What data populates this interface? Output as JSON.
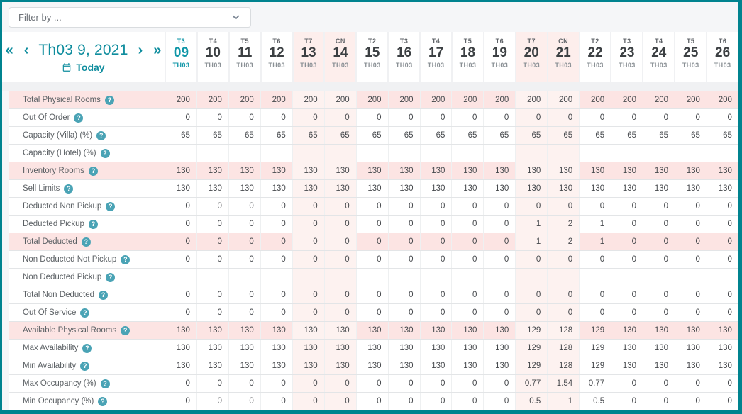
{
  "colors": {
    "accent_teal": "#0f8d9e",
    "frame_border": "#00838f",
    "highlight_row_bg": "#fce4e3",
    "weekend_body_bg": "#fdf2f0",
    "weekend_header_bg": "#fdeeec",
    "help_icon_bg": "#4aa3b5"
  },
  "filter": {
    "placeholder": "Filter by ..."
  },
  "nav": {
    "first_icon": "«",
    "prev_icon": "‹",
    "title": "Th03 9, 2021",
    "next_icon": "›",
    "last_icon": "»",
    "today_label": "Today"
  },
  "calendar": {
    "days": [
      {
        "dow": "T3",
        "num": "09",
        "mon": "TH03",
        "weekend": false,
        "selected": true
      },
      {
        "dow": "T4",
        "num": "10",
        "mon": "TH03",
        "weekend": false,
        "selected": false
      },
      {
        "dow": "T5",
        "num": "11",
        "mon": "TH03",
        "weekend": false,
        "selected": false
      },
      {
        "dow": "T6",
        "num": "12",
        "mon": "TH03",
        "weekend": false,
        "selected": false
      },
      {
        "dow": "T7",
        "num": "13",
        "mon": "TH03",
        "weekend": true,
        "selected": false
      },
      {
        "dow": "CN",
        "num": "14",
        "mon": "TH03",
        "weekend": true,
        "selected": false
      },
      {
        "dow": "T2",
        "num": "15",
        "mon": "TH03",
        "weekend": false,
        "selected": false
      },
      {
        "dow": "T3",
        "num": "16",
        "mon": "TH03",
        "weekend": false,
        "selected": false
      },
      {
        "dow": "T4",
        "num": "17",
        "mon": "TH03",
        "weekend": false,
        "selected": false
      },
      {
        "dow": "T5",
        "num": "18",
        "mon": "TH03",
        "weekend": false,
        "selected": false
      },
      {
        "dow": "T6",
        "num": "19",
        "mon": "TH03",
        "weekend": false,
        "selected": false
      },
      {
        "dow": "T7",
        "num": "20",
        "mon": "TH03",
        "weekend": true,
        "selected": false
      },
      {
        "dow": "CN",
        "num": "21",
        "mon": "TH03",
        "weekend": true,
        "selected": false
      },
      {
        "dow": "T2",
        "num": "22",
        "mon": "TH03",
        "weekend": false,
        "selected": false
      },
      {
        "dow": "T3",
        "num": "23",
        "mon": "TH03",
        "weekend": false,
        "selected": false
      },
      {
        "dow": "T4",
        "num": "24",
        "mon": "TH03",
        "weekend": false,
        "selected": false
      },
      {
        "dow": "T5",
        "num": "25",
        "mon": "TH03",
        "weekend": false,
        "selected": false
      },
      {
        "dow": "T6",
        "num": "26",
        "mon": "TH03",
        "weekend": false,
        "selected": false
      }
    ]
  },
  "table": {
    "rows": [
      {
        "label": "Total Physical Rooms",
        "highlight": true,
        "values": [
          "200",
          "200",
          "200",
          "200",
          "200",
          "200",
          "200",
          "200",
          "200",
          "200",
          "200",
          "200",
          "200",
          "200",
          "200",
          "200",
          "200",
          "200"
        ]
      },
      {
        "label": "Out Of Order",
        "highlight": false,
        "values": [
          "0",
          "0",
          "0",
          "0",
          "0",
          "0",
          "0",
          "0",
          "0",
          "0",
          "0",
          "0",
          "0",
          "0",
          "0",
          "0",
          "0",
          "0"
        ]
      },
      {
        "label": "Capacity (Villa) (%)",
        "highlight": false,
        "values": [
          "65",
          "65",
          "65",
          "65",
          "65",
          "65",
          "65",
          "65",
          "65",
          "65",
          "65",
          "65",
          "65",
          "65",
          "65",
          "65",
          "65",
          "65"
        ]
      },
      {
        "label": "Capacity (Hotel) (%)",
        "highlight": false,
        "values": [
          "",
          "",
          "",
          "",
          "",
          "",
          "",
          "",
          "",
          "",
          "",
          "",
          "",
          "",
          "",
          "",
          "",
          ""
        ]
      },
      {
        "label": "Inventory Rooms",
        "highlight": true,
        "values": [
          "130",
          "130",
          "130",
          "130",
          "130",
          "130",
          "130",
          "130",
          "130",
          "130",
          "130",
          "130",
          "130",
          "130",
          "130",
          "130",
          "130",
          "130"
        ]
      },
      {
        "label": "Sell Limits",
        "highlight": false,
        "values": [
          "130",
          "130",
          "130",
          "130",
          "130",
          "130",
          "130",
          "130",
          "130",
          "130",
          "130",
          "130",
          "130",
          "130",
          "130",
          "130",
          "130",
          "130"
        ]
      },
      {
        "label": "Deducted Non Pickup",
        "highlight": false,
        "values": [
          "0",
          "0",
          "0",
          "0",
          "0",
          "0",
          "0",
          "0",
          "0",
          "0",
          "0",
          "0",
          "0",
          "0",
          "0",
          "0",
          "0",
          "0"
        ]
      },
      {
        "label": "Deducted Pickup",
        "highlight": false,
        "values": [
          "0",
          "0",
          "0",
          "0",
          "0",
          "0",
          "0",
          "0",
          "0",
          "0",
          "0",
          "1",
          "2",
          "1",
          "0",
          "0",
          "0",
          "0"
        ]
      },
      {
        "label": "Total Deducted",
        "highlight": true,
        "values": [
          "0",
          "0",
          "0",
          "0",
          "0",
          "0",
          "0",
          "0",
          "0",
          "0",
          "0",
          "1",
          "2",
          "1",
          "0",
          "0",
          "0",
          "0"
        ]
      },
      {
        "label": "Non Deducted Not Pickup",
        "highlight": false,
        "values": [
          "0",
          "0",
          "0",
          "0",
          "0",
          "0",
          "0",
          "0",
          "0",
          "0",
          "0",
          "0",
          "0",
          "0",
          "0",
          "0",
          "0",
          "0"
        ]
      },
      {
        "label": "Non Deducted Pickup",
        "highlight": false,
        "values": [
          "",
          "",
          "",
          "",
          "",
          "",
          "",
          "",
          "",
          "",
          "",
          "",
          "",
          "",
          "",
          "",
          "",
          ""
        ]
      },
      {
        "label": "Total Non Deducted",
        "highlight": false,
        "values": [
          "0",
          "0",
          "0",
          "0",
          "0",
          "0",
          "0",
          "0",
          "0",
          "0",
          "0",
          "0",
          "0",
          "0",
          "0",
          "0",
          "0",
          "0"
        ]
      },
      {
        "label": "Out Of Service",
        "highlight": false,
        "values": [
          "0",
          "0",
          "0",
          "0",
          "0",
          "0",
          "0",
          "0",
          "0",
          "0",
          "0",
          "0",
          "0",
          "0",
          "0",
          "0",
          "0",
          "0"
        ]
      },
      {
        "label": "Available Physical Rooms",
        "highlight": true,
        "values": [
          "130",
          "130",
          "130",
          "130",
          "130",
          "130",
          "130",
          "130",
          "130",
          "130",
          "130",
          "129",
          "128",
          "129",
          "130",
          "130",
          "130",
          "130"
        ]
      },
      {
        "label": "Max Availability",
        "highlight": false,
        "values": [
          "130",
          "130",
          "130",
          "130",
          "130",
          "130",
          "130",
          "130",
          "130",
          "130",
          "130",
          "129",
          "128",
          "129",
          "130",
          "130",
          "130",
          "130"
        ]
      },
      {
        "label": "Min Availability",
        "highlight": false,
        "values": [
          "130",
          "130",
          "130",
          "130",
          "130",
          "130",
          "130",
          "130",
          "130",
          "130",
          "130",
          "129",
          "128",
          "129",
          "130",
          "130",
          "130",
          "130"
        ]
      },
      {
        "label": "Max Occupancy (%)",
        "highlight": false,
        "values": [
          "0",
          "0",
          "0",
          "0",
          "0",
          "0",
          "0",
          "0",
          "0",
          "0",
          "0",
          "0.77",
          "1.54",
          "0.77",
          "0",
          "0",
          "0",
          "0"
        ]
      },
      {
        "label": "Min Occupancy (%)",
        "highlight": false,
        "values": [
          "0",
          "0",
          "0",
          "0",
          "0",
          "0",
          "0",
          "0",
          "0",
          "0",
          "0",
          "0.5",
          "1",
          "0.5",
          "0",
          "0",
          "0",
          "0"
        ]
      }
    ]
  }
}
